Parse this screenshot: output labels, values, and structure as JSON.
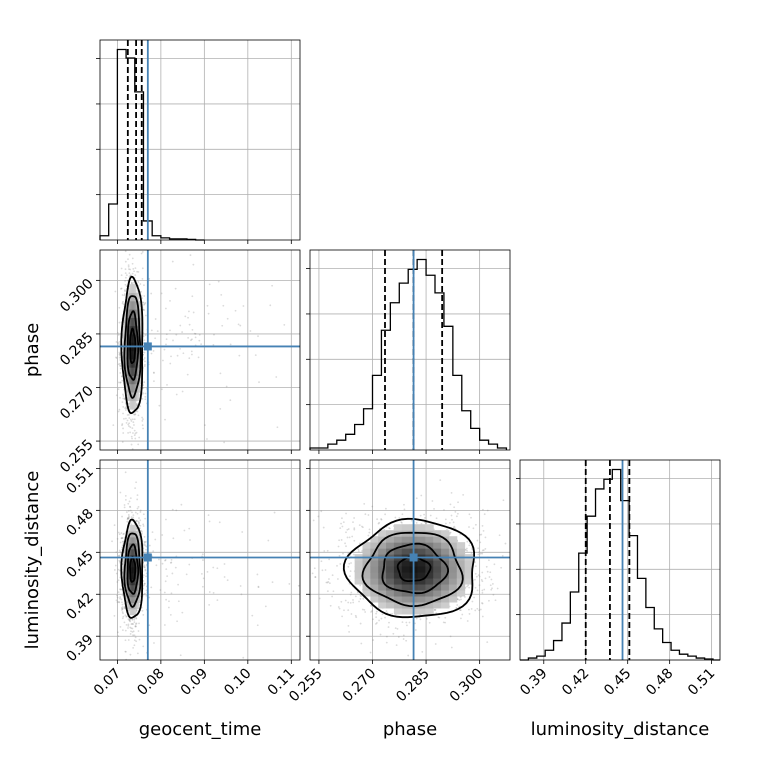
{
  "chart_data": {
    "type": "corner",
    "truth_color": "#4682b4",
    "parameters": [
      {
        "name": "geocent_time",
        "label": "geocent_time",
        "range": [
          0.066,
          0.112
        ],
        "ticks": [
          0.07,
          0.08,
          0.09,
          0.1,
          0.11
        ],
        "tick_labels": [
          "0.07",
          "0.08",
          "0.09",
          "0.10",
          "0.11"
        ],
        "truth": 0.077,
        "quantiles": [
          0.0724,
          0.0743,
          0.0756
        ],
        "hist_edges": [
          0.066,
          0.068,
          0.07,
          0.072,
          0.074,
          0.076,
          0.078,
          0.08,
          0.082,
          0.084,
          0.086,
          0.088,
          0.09
        ],
        "hist_values": [
          0.02,
          0.17,
          0.9,
          0.86,
          0.7,
          0.09,
          0.02,
          0.01,
          0.005,
          0.005,
          0.003,
          0.0
        ]
      },
      {
        "name": "phase",
        "label": "phase",
        "range": [
          0.2525,
          0.3085
        ],
        "ticks": [
          0.255,
          0.27,
          0.285,
          0.3
        ],
        "tick_labels": [
          "0.255",
          "0.270",
          "0.285",
          "0.300"
        ],
        "truth": 0.2815,
        "quantiles": [
          0.2735,
          0.2815,
          0.2895
        ],
        "hist_edges": [
          0.2525,
          0.255,
          0.2575,
          0.26,
          0.2625,
          0.265,
          0.2675,
          0.27,
          0.2725,
          0.275,
          0.2775,
          0.28,
          0.2825,
          0.285,
          0.2875,
          0.29,
          0.2925,
          0.295,
          0.2975,
          0.3,
          0.3025,
          0.305,
          0.3075
        ],
        "hist_values": [
          0.01,
          0.01,
          0.03,
          0.05,
          0.08,
          0.13,
          0.21,
          0.38,
          0.61,
          0.75,
          0.85,
          0.92,
          0.97,
          0.89,
          0.8,
          0.63,
          0.38,
          0.2,
          0.11,
          0.05,
          0.03,
          0.01
        ]
      },
      {
        "name": "luminosity_distance",
        "label": "luminosity_distance",
        "range": [
          0.373,
          0.516
        ],
        "ticks": [
          0.39,
          0.42,
          0.45,
          0.48,
          0.51
        ],
        "tick_labels": [
          "0.39",
          "0.42",
          "0.45",
          "0.48",
          "0.51"
        ],
        "truth": 0.4463,
        "quantiles": [
          0.42,
          0.4373,
          0.4512
        ],
        "hist_edges": [
          0.373,
          0.379,
          0.385,
          0.391,
          0.397,
          0.403,
          0.409,
          0.415,
          0.421,
          0.427,
          0.433,
          0.439,
          0.445,
          0.451,
          0.457,
          0.463,
          0.469,
          0.475,
          0.481,
          0.487,
          0.493,
          0.499,
          0.505,
          0.511,
          0.516
        ],
        "hist_values": [
          0.0,
          0.01,
          0.02,
          0.05,
          0.1,
          0.19,
          0.35,
          0.55,
          0.74,
          0.88,
          0.93,
          0.98,
          0.82,
          0.64,
          0.42,
          0.27,
          0.16,
          0.09,
          0.05,
          0.03,
          0.02,
          0.01,
          0.005,
          0.0
        ]
      }
    ],
    "joint_2d": [
      {
        "x": "geocent_time",
        "y": "phase",
        "center": [
          0.0735,
          0.2815
        ],
        "sigma": [
          0.0012,
          0.0095
        ],
        "rho": 0.0,
        "outlier_fraction": 0.07
      },
      {
        "x": "geocent_time",
        "y": "luminosity_distance",
        "center": [
          0.0735,
          0.4375
        ],
        "sigma": [
          0.0012,
          0.0175
        ],
        "rho": 0.0,
        "outlier_fraction": 0.07
      },
      {
        "x": "phase",
        "y": "luminosity_distance",
        "center": [
          0.2815,
          0.438
        ],
        "sigma": [
          0.009,
          0.0175
        ],
        "rho": 0.0,
        "outlier_fraction": 0.0
      }
    ],
    "contour_levels_sigma": [
      0.5,
      1.0,
      1.5,
      2.0
    ],
    "grid": true
  }
}
